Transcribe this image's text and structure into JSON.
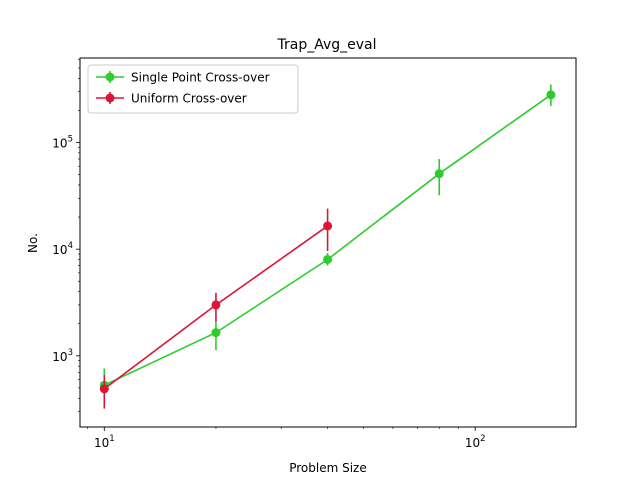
{
  "chart_data": {
    "type": "line",
    "title": "Trap_Avg_eval",
    "xlabel": "Problem Size",
    "ylabel": "No.",
    "x_scale": "log",
    "y_scale": "log",
    "xlim": [
      8.6,
      187
    ],
    "ylim": [
      215,
      620000
    ],
    "x_ticks": [
      {
        "value": 10,
        "base": "10",
        "exp": "1"
      },
      {
        "value": 100,
        "base": "10",
        "exp": "2"
      }
    ],
    "y_ticks": [
      {
        "value": 1000,
        "base": "10",
        "exp": "3"
      },
      {
        "value": 10000,
        "base": "10",
        "exp": "4"
      },
      {
        "value": 100000,
        "base": "10",
        "exp": "5"
      }
    ],
    "grid": false,
    "legend_position": "top-left",
    "series": [
      {
        "name": "Single Point Cross-over",
        "color": "#2ecc2e",
        "points": [
          {
            "x": 10,
            "y": 530,
            "err_low": 430,
            "err_high": 760
          },
          {
            "x": 20,
            "y": 1650,
            "err_low": 1130,
            "err_high": 2100
          },
          {
            "x": 40,
            "y": 8000,
            "err_low": 7000,
            "err_high": 9200
          },
          {
            "x": 80,
            "y": 51000,
            "err_low": 32000,
            "err_high": 70000
          },
          {
            "x": 160,
            "y": 280000,
            "err_low": 220000,
            "err_high": 350000
          }
        ]
      },
      {
        "name": "Uniform Cross-over",
        "color": "#dc1438",
        "points": [
          {
            "x": 10,
            "y": 490,
            "err_low": 320,
            "err_high": 660
          },
          {
            "x": 20,
            "y": 3000,
            "err_low": 2100,
            "err_high": 3900
          },
          {
            "x": 40,
            "y": 16500,
            "err_low": 9600,
            "err_high": 24000
          }
        ]
      }
    ]
  }
}
